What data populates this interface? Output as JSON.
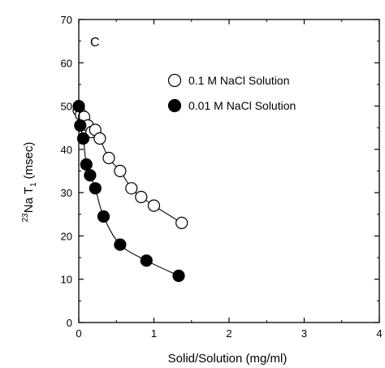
{
  "chart_data": {
    "type": "scatter",
    "panel_label": "C",
    "xlabel": "Solid/Solution (mg/ml)",
    "ylabel_main": "Na T",
    "ylabel_superscript": "23",
    "ylabel_subscript": "1",
    "ylabel_unit": "(msec)",
    "xlim": [
      0,
      4
    ],
    "ylim": [
      0,
      70
    ],
    "x_ticks": [
      "0",
      "1",
      "2",
      "3",
      "4"
    ],
    "y_ticks": [
      "0",
      "10",
      "20",
      "30",
      "40",
      "50",
      "60",
      "70"
    ],
    "grid": false,
    "legend_position": "top-right",
    "series": [
      {
        "name": "0.1 M NaCl Solution",
        "marker": "open-circle",
        "x": [
          0.0,
          0.03,
          0.07,
          0.12,
          0.17,
          0.22,
          0.28,
          0.4,
          0.55,
          0.7,
          0.83,
          1.0,
          1.37
        ],
        "y": [
          49,
          48,
          47.5,
          45.5,
          44,
          44.5,
          42.5,
          38,
          35,
          31,
          29,
          27,
          23
        ]
      },
      {
        "name": "0.01 M NaCl Solution",
        "marker": "filled-circle",
        "x": [
          0.0,
          0.02,
          0.06,
          0.1,
          0.15,
          0.22,
          0.33,
          0.55,
          0.9,
          1.33
        ],
        "y": [
          50,
          45.5,
          42.5,
          36.5,
          34,
          31,
          24.5,
          18,
          14.3,
          10.8
        ]
      }
    ]
  }
}
